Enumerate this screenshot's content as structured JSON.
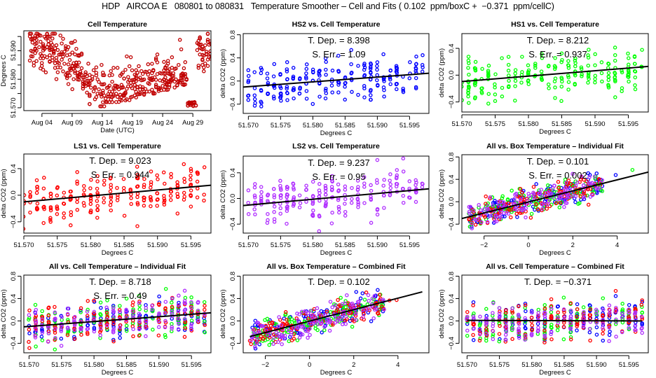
{
  "header": {
    "title": "HDP   AIRCOA E   080801 to 080831   Temperature Smoother – Cell and Fits ( 0.102  ppm/boxC +  −0.371  ppm/cellC)"
  },
  "colors": {
    "cell": "#c00000",
    "HS2": "#0000ff",
    "HS1": "#00ff00",
    "LS1": "#ff0000",
    "LS2": "#b030ff",
    "fit_line": "#000000"
  },
  "chart_data": [
    {
      "id": "cell-temperature",
      "type": "scatter",
      "title": "Cell Temperature",
      "xlabel": "Date (UTC)",
      "ylabel": "Degrees C",
      "x_kind": "date",
      "xlim": [
        0,
        31
      ],
      "ylim": [
        51.569,
        51.597
      ],
      "xticks": [
        3,
        8,
        13,
        18,
        23,
        28
      ],
      "xtick_labels": [
        "Aug 04",
        "Aug 09",
        "Aug 14",
        "Aug 19",
        "Aug 24",
        "Aug 29"
      ],
      "yticks": [
        51.57,
        51.575,
        51.58,
        51.585,
        51.59,
        51.595
      ],
      "ytick_labels": [
        "51.570",
        "",
        "51.580",
        "",
        "51.590",
        ""
      ],
      "series": [
        {
          "name": "cell",
          "color_key": "cell"
        }
      ],
      "annotations": []
    },
    {
      "id": "hs2-vs-cell",
      "type": "scatter",
      "title": "HS2 vs. Cell Temperature",
      "xlabel": "Degrees C",
      "ylabel": "delta CO2 (ppm)",
      "x_kind": "cell",
      "xlim": [
        51.5692,
        51.598
      ],
      "ylim": [
        -0.56,
        0.82
      ],
      "xticks": [
        51.57,
        51.575,
        51.58,
        51.585,
        51.59,
        51.595
      ],
      "xtick_labels": [
        "51.570",
        "51.575",
        "51.580",
        "51.585",
        "51.590",
        "51.595"
      ],
      "yticks": [
        -0.4,
        0.0,
        0.4,
        0.8
      ],
      "ytick_labels": [
        "−0.4",
        "0.0",
        "0.4",
        "0.8"
      ],
      "series": [
        {
          "name": "HS2",
          "color_key": "HS2"
        }
      ],
      "fit": {
        "x": [
          51.5692,
          51.598
        ],
        "y": [
          -0.105,
          0.135
        ]
      },
      "annotations": [
        "T. Dep. =  8.398",
        "S. Err. =  1.09"
      ]
    },
    {
      "id": "hs1-vs-cell",
      "type": "scatter",
      "title": "HS1 vs. Cell Temperature",
      "xlabel": "Degrees C",
      "ylabel": "delta CO2 (ppm)",
      "x_kind": "cell",
      "xlim": [
        51.57,
        51.598
      ],
      "ylim": [
        -0.55,
        0.62
      ],
      "xticks": [
        51.57,
        51.575,
        51.58,
        51.585,
        51.59,
        51.595
      ],
      "xtick_labels": [
        "51.570",
        "51.575",
        "51.580",
        "51.585",
        "51.590",
        "51.595"
      ],
      "yticks": [
        -0.4,
        0.0,
        0.4
      ],
      "ytick_labels": [
        "−0.4",
        "0.0",
        "0.4"
      ],
      "series": [
        {
          "name": "HS1",
          "color_key": "HS1"
        }
      ],
      "fit": {
        "x": [
          51.57,
          51.598
        ],
        "y": [
          -0.095,
          0.13
        ]
      },
      "annotations": [
        "T. Dep. =  8.212",
        "S. Err. =  0.937"
      ]
    },
    {
      "id": "ls1-vs-cell",
      "type": "scatter",
      "title": "LS1 vs. Cell Temperature",
      "xlabel": "Degrees C",
      "ylabel": "delta CO2 (ppm)",
      "x_kind": "cell",
      "xlim": [
        51.57,
        51.598
      ],
      "ylim": [
        -0.57,
        0.62
      ],
      "xticks": [
        51.57,
        51.575,
        51.58,
        51.585,
        51.59,
        51.595
      ],
      "xtick_labels": [
        "51.570",
        "51.575",
        "51.580",
        "51.585",
        "51.590",
        "51.595"
      ],
      "yticks": [
        -0.4,
        0.0,
        0.4
      ],
      "ytick_labels": [
        "−0.4",
        "0.0",
        "0.4"
      ],
      "series": [
        {
          "name": "LS1",
          "color_key": "LS1"
        }
      ],
      "fit": {
        "x": [
          51.57,
          51.598
        ],
        "y": [
          -0.1,
          0.15
        ]
      },
      "annotations": [
        "T. Dep. =  9.023",
        "S. Err. =  0.944"
      ]
    },
    {
      "id": "ls2-vs-cell",
      "type": "scatter",
      "title": "LS2 vs. Cell Temperature",
      "xlabel": "Degrees C",
      "ylabel": "delta CO2 (ppm)",
      "x_kind": "cell",
      "xlim": [
        51.5692,
        51.598
      ],
      "ylim": [
        -0.54,
        0.66
      ],
      "xticks": [
        51.57,
        51.575,
        51.58,
        51.585,
        51.59,
        51.595
      ],
      "xtick_labels": [
        "51.570",
        "51.575",
        "51.580",
        "51.585",
        "51.590",
        "51.595"
      ],
      "yticks": [
        -0.4,
        0.0,
        0.4
      ],
      "ytick_labels": [
        "−0.4",
        "0.0",
        "0.4"
      ],
      "series": [
        {
          "name": "LS2",
          "color_key": "LS2"
        }
      ],
      "fit": {
        "x": [
          51.5692,
          51.598
        ],
        "y": [
          -0.11,
          0.15
        ]
      },
      "annotations": [
        "T. Dep. =  9.237",
        "S. Err. =  0.95"
      ]
    },
    {
      "id": "all-vs-box-individual",
      "type": "scatter",
      "title": "All vs. Box Temperature – Individual Fit",
      "xlabel": "Degrees C",
      "ylabel": "delta CO2 (ppm)",
      "x_kind": "box",
      "xlim": [
        -3.0,
        5.4
      ],
      "ylim": [
        -0.56,
        0.84
      ],
      "xticks": [
        -2,
        0,
        2,
        4
      ],
      "xtick_labels": [
        "−2",
        "0",
        "2",
        "4"
      ],
      "yticks": [
        -0.4,
        0.0,
        0.4,
        0.8
      ],
      "ytick_labels": [
        "−0.4",
        "0.0",
        "0.4",
        "0.8"
      ],
      "series": [
        {
          "name": "HS2",
          "color_key": "HS2"
        },
        {
          "name": "HS1",
          "color_key": "HS1"
        },
        {
          "name": "LS1",
          "color_key": "LS1"
        },
        {
          "name": "LS2",
          "color_key": "LS2"
        }
      ],
      "fit": {
        "x": [
          -3.0,
          5.4
        ],
        "y": [
          -0.3,
          0.53
        ]
      },
      "annotations": [
        "T. Dep. =  0.101",
        "S. Err. =  0.002"
      ]
    },
    {
      "id": "all-vs-cell-individual",
      "type": "scatter",
      "title": "All vs. Cell Temperature – Individual Fit",
      "xlabel": "Degrees C",
      "ylabel": "delta CO2 (ppm)",
      "x_kind": "cell",
      "xlim": [
        51.5692,
        51.598
      ],
      "ylim": [
        -0.57,
        0.82
      ],
      "xticks": [
        51.57,
        51.575,
        51.58,
        51.585,
        51.59,
        51.595
      ],
      "xtick_labels": [
        "51.570",
        "51.575",
        "51.580",
        "51.585",
        "51.590",
        "51.595"
      ],
      "yticks": [
        -0.4,
        0.0,
        0.4,
        0.8
      ],
      "ytick_labels": [
        "−0.4",
        "0.0",
        "0.4",
        "0.8"
      ],
      "series": [
        {
          "name": "HS2",
          "color_key": "HS2"
        },
        {
          "name": "HS1",
          "color_key": "HS1"
        },
        {
          "name": "LS1",
          "color_key": "LS1"
        },
        {
          "name": "LS2",
          "color_key": "LS2"
        }
      ],
      "fit": {
        "x": [
          51.5692,
          51.598
        ],
        "y": [
          -0.105,
          0.145
        ]
      },
      "annotations": [
        "T. Dep. =  8.718",
        "S. Err. =  0.49"
      ]
    },
    {
      "id": "all-vs-box-combined",
      "type": "scatter",
      "title": "All vs. Box Temperature – Combined Fit",
      "xlabel": "Degrees C",
      "ylabel": "delta CO2 (ppm)",
      "x_kind": "box",
      "xlim": [
        -3.0,
        5.4
      ],
      "ylim": [
        -0.57,
        0.82
      ],
      "xticks": [
        -2,
        0,
        2,
        4
      ],
      "xtick_labels": [
        "−2",
        "0",
        "2",
        "4"
      ],
      "yticks": [
        -0.4,
        0.0,
        0.4,
        0.8
      ],
      "ytick_labels": [
        "−0.4",
        "0.0",
        "0.4",
        "0.8"
      ],
      "series": [
        {
          "name": "HS2",
          "color_key": "HS2"
        },
        {
          "name": "HS1",
          "color_key": "HS1"
        },
        {
          "name": "LS1",
          "color_key": "LS1"
        },
        {
          "name": "LS2",
          "color_key": "LS2"
        }
      ],
      "fit": {
        "x": [
          -2.7,
          5.1
        ],
        "y": [
          -0.28,
          0.52
        ]
      },
      "annotations": [
        "T. Dep. =  0.102"
      ]
    },
    {
      "id": "all-vs-cell-combined",
      "type": "scatter",
      "title": "All vs. Cell Temperature – Combined Fit",
      "xlabel": "Degrees C",
      "ylabel": "delta CO2 (ppm)",
      "x_kind": "cell",
      "xlim": [
        51.5692,
        51.598
      ],
      "ylim": [
        -0.57,
        0.82
      ],
      "xticks": [
        51.57,
        51.575,
        51.58,
        51.585,
        51.59,
        51.595
      ],
      "xtick_labels": [
        "51.570",
        "51.575",
        "51.580",
        "51.585",
        "51.590",
        "51.595"
      ],
      "yticks": [
        -0.4,
        0.0,
        0.4,
        0.8
      ],
      "ytick_labels": [
        "−0.4",
        "0.0",
        "0.4",
        "0.8"
      ],
      "series": [
        {
          "name": "HS2",
          "color_key": "HS2"
        },
        {
          "name": "HS1",
          "color_key": "HS1"
        },
        {
          "name": "LS1",
          "color_key": "LS1"
        },
        {
          "name": "LS2",
          "color_key": "LS2"
        }
      ],
      "fit": {
        "x": [
          51.57,
          51.597
        ],
        "y": [
          0.01,
          0.0
        ]
      },
      "annotations": [
        "T. Dep. =  −0.371"
      ]
    }
  ]
}
